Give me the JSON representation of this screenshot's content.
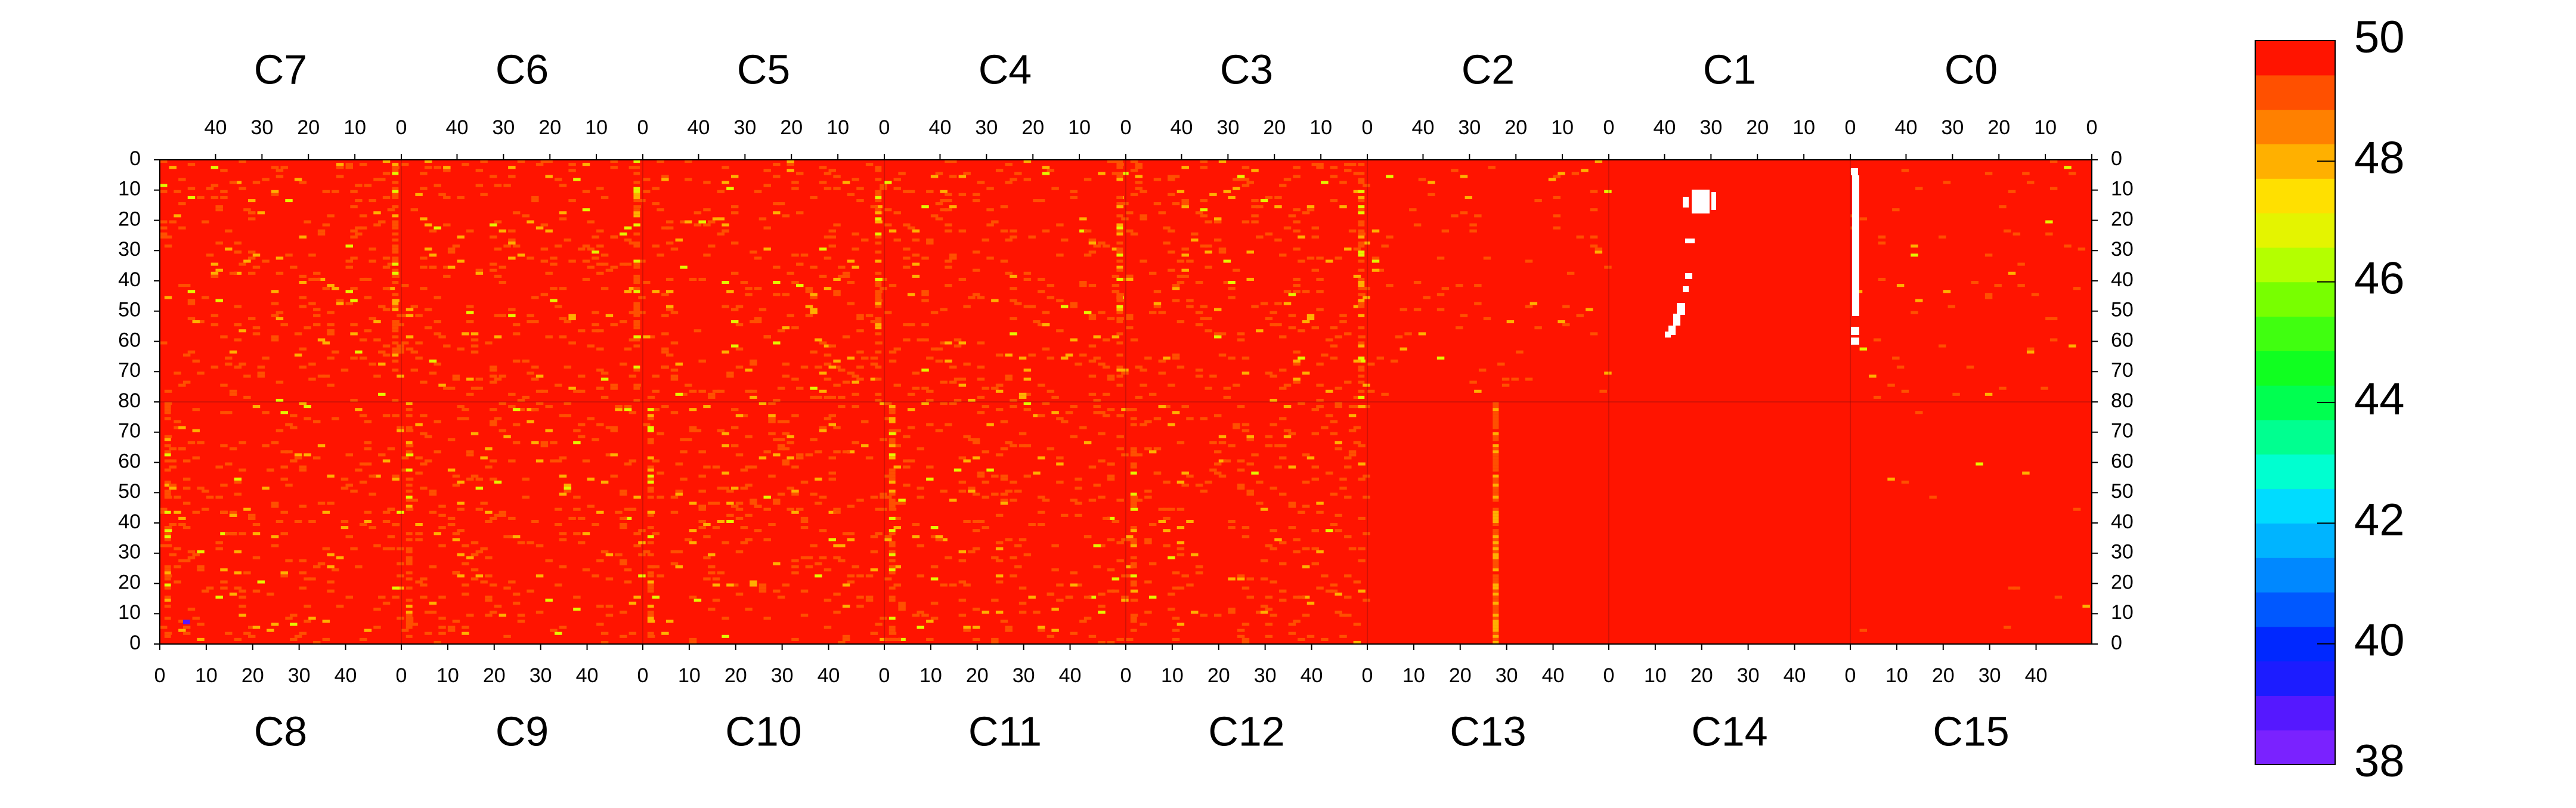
{
  "chart_data": {
    "type": "heatmap",
    "title": "",
    "chip_rows": [
      {
        "position": "top",
        "chips": [
          "C7",
          "C6",
          "C5",
          "C4",
          "C3",
          "C2",
          "C1",
          "C0"
        ],
        "x_tick_labels": [
          "40",
          "30",
          "20",
          "10",
          "0"
        ],
        "x_direction": "descending"
      },
      {
        "position": "bottom",
        "chips": [
          "C8",
          "C9",
          "C10",
          "C11",
          "C12",
          "C13",
          "C14",
          "C15"
        ],
        "x_tick_labels": [
          "0",
          "10",
          "20",
          "30",
          "40"
        ],
        "x_direction": "ascending"
      }
    ],
    "columns_per_chip": 52,
    "rows_per_chip": 80,
    "y_tick_labels_top_row": [
      "0",
      "10",
      "20",
      "30",
      "40",
      "50",
      "60",
      "70",
      "80"
    ],
    "y_tick_labels_bottom_row": [
      "80",
      "70",
      "60",
      "50",
      "40",
      "30",
      "20",
      "10",
      "0"
    ],
    "z_range": [
      38,
      50
    ],
    "colorbar_tick_labels": [
      "50",
      "48",
      "46",
      "44",
      "42",
      "40",
      "38"
    ],
    "colorscale": [
      "#7a22ff",
      "#5518ff",
      "#1c1cff",
      "#0028ff",
      "#0058ff",
      "#0088ff",
      "#00b4ff",
      "#00dcff",
      "#00ffd0",
      "#00ff90",
      "#00ff50",
      "#10ff20",
      "#40ff10",
      "#78ff00",
      "#b4ff00",
      "#e4f400",
      "#ffe000",
      "#ffb000",
      "#ff8000",
      "#ff5000",
      "#ff1400"
    ],
    "dominant_value": 50,
    "secondary_values": [
      49,
      48,
      47,
      39
    ],
    "grid": false,
    "legend": "colorbar right",
    "masked_pixel_color": "#ffffff"
  }
}
